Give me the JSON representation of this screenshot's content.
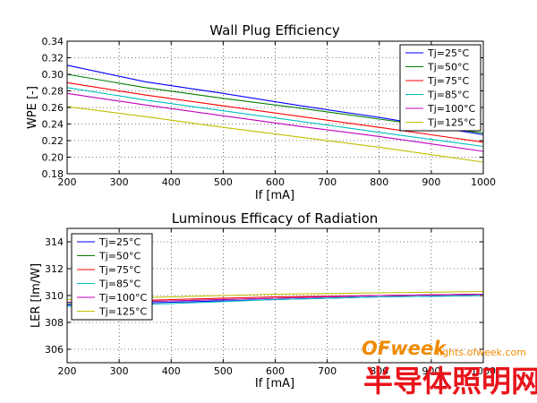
{
  "chart_data": [
    {
      "type": "line",
      "title": "Wall Plug Efficiency",
      "xlabel": "If [mA]",
      "ylabel": "WPE [-]",
      "xlim": [
        200,
        1000
      ],
      "ylim": [
        0.18,
        0.34
      ],
      "xticks": [
        200,
        300,
        400,
        500,
        600,
        700,
        800,
        900,
        1000
      ],
      "xtick_labels": [
        "200",
        "300",
        "400",
        "500",
        "600",
        "700",
        "800",
        "900",
        "1000"
      ],
      "yticks": [
        0.18,
        0.2,
        0.22,
        0.24,
        0.26,
        0.28,
        0.3,
        0.32,
        0.34
      ],
      "ytick_labels": [
        "0.18",
        "0.20",
        "0.22",
        "0.24",
        "0.26",
        "0.28",
        "0.30",
        "0.32",
        "0.34"
      ],
      "grid": true,
      "legend_position": "top-right",
      "x": [
        200,
        350,
        500,
        650,
        800,
        1000
      ],
      "series": [
        {
          "name": "Tj=25°C",
          "color": "#0000ff",
          "values": [
            0.311,
            0.291,
            0.277,
            0.262,
            0.248,
            0.227
          ]
        },
        {
          "name": "Tj=50°C",
          "color": "#008000",
          "values": [
            0.3,
            0.284,
            0.271,
            0.259,
            0.246,
            0.229
          ]
        },
        {
          "name": "Tj=75°C",
          "color": "#ff0000",
          "values": [
            0.29,
            0.275,
            0.262,
            0.249,
            0.236,
            0.218
          ]
        },
        {
          "name": "Tj=85°C",
          "color": "#00bfbf",
          "values": [
            0.284,
            0.269,
            0.256,
            0.243,
            0.23,
            0.213
          ]
        },
        {
          "name": "Tj=100°C",
          "color": "#bf00bf",
          "values": [
            0.277,
            0.263,
            0.25,
            0.237,
            0.225,
            0.207
          ]
        },
        {
          "name": "Tj=125°C",
          "color": "#bfbf00",
          "values": [
            0.261,
            0.249,
            0.236,
            0.224,
            0.212,
            0.194
          ]
        }
      ]
    },
    {
      "type": "line",
      "title": "Luminous Efficacy of Radiation",
      "xlabel": "If [mA]",
      "ylabel": "LER [lm/W]",
      "xlim": [
        200,
        1000
      ],
      "ylim": [
        305,
        315
      ],
      "xticks": [
        200,
        300,
        400,
        500,
        600,
        700,
        800,
        900,
        1000
      ],
      "xtick_labels": [
        "200",
        "300",
        "400",
        "500",
        "600",
        "700",
        "800",
        "900",
        "1000"
      ],
      "yticks": [
        306,
        308,
        310,
        312,
        314
      ],
      "ytick_labels": [
        "306",
        "308",
        "310",
        "312",
        "314"
      ],
      "grid": true,
      "legend_position": "top-left",
      "x": [
        200,
        400,
        600,
        800,
        1000
      ],
      "series": [
        {
          "name": "Tj=25°C",
          "color": "#0000ff",
          "values": [
            309.3,
            309.5,
            309.7,
            309.9,
            310.0
          ]
        },
        {
          "name": "Tj=50°C",
          "color": "#008000",
          "values": [
            309.4,
            309.6,
            309.8,
            310.0,
            310.1
          ]
        },
        {
          "name": "Tj=75°C",
          "color": "#ff0000",
          "values": [
            309.5,
            309.7,
            309.9,
            310.0,
            310.1
          ]
        },
        {
          "name": "Tj=85°C",
          "color": "#00bfbf",
          "values": [
            309.2,
            309.4,
            309.7,
            309.9,
            310.0
          ]
        },
        {
          "name": "Tj=100°C",
          "color": "#bf00bf",
          "values": [
            309.5,
            309.6,
            309.8,
            310.0,
            310.1
          ]
        },
        {
          "name": "Tj=125°C",
          "color": "#bfbf00",
          "values": [
            309.7,
            309.9,
            310.1,
            310.2,
            310.3
          ]
        }
      ]
    }
  ],
  "watermark": {
    "brand": "OFweek",
    "url": "lights.ofweek.com",
    "chinese": "半导体照明网"
  }
}
